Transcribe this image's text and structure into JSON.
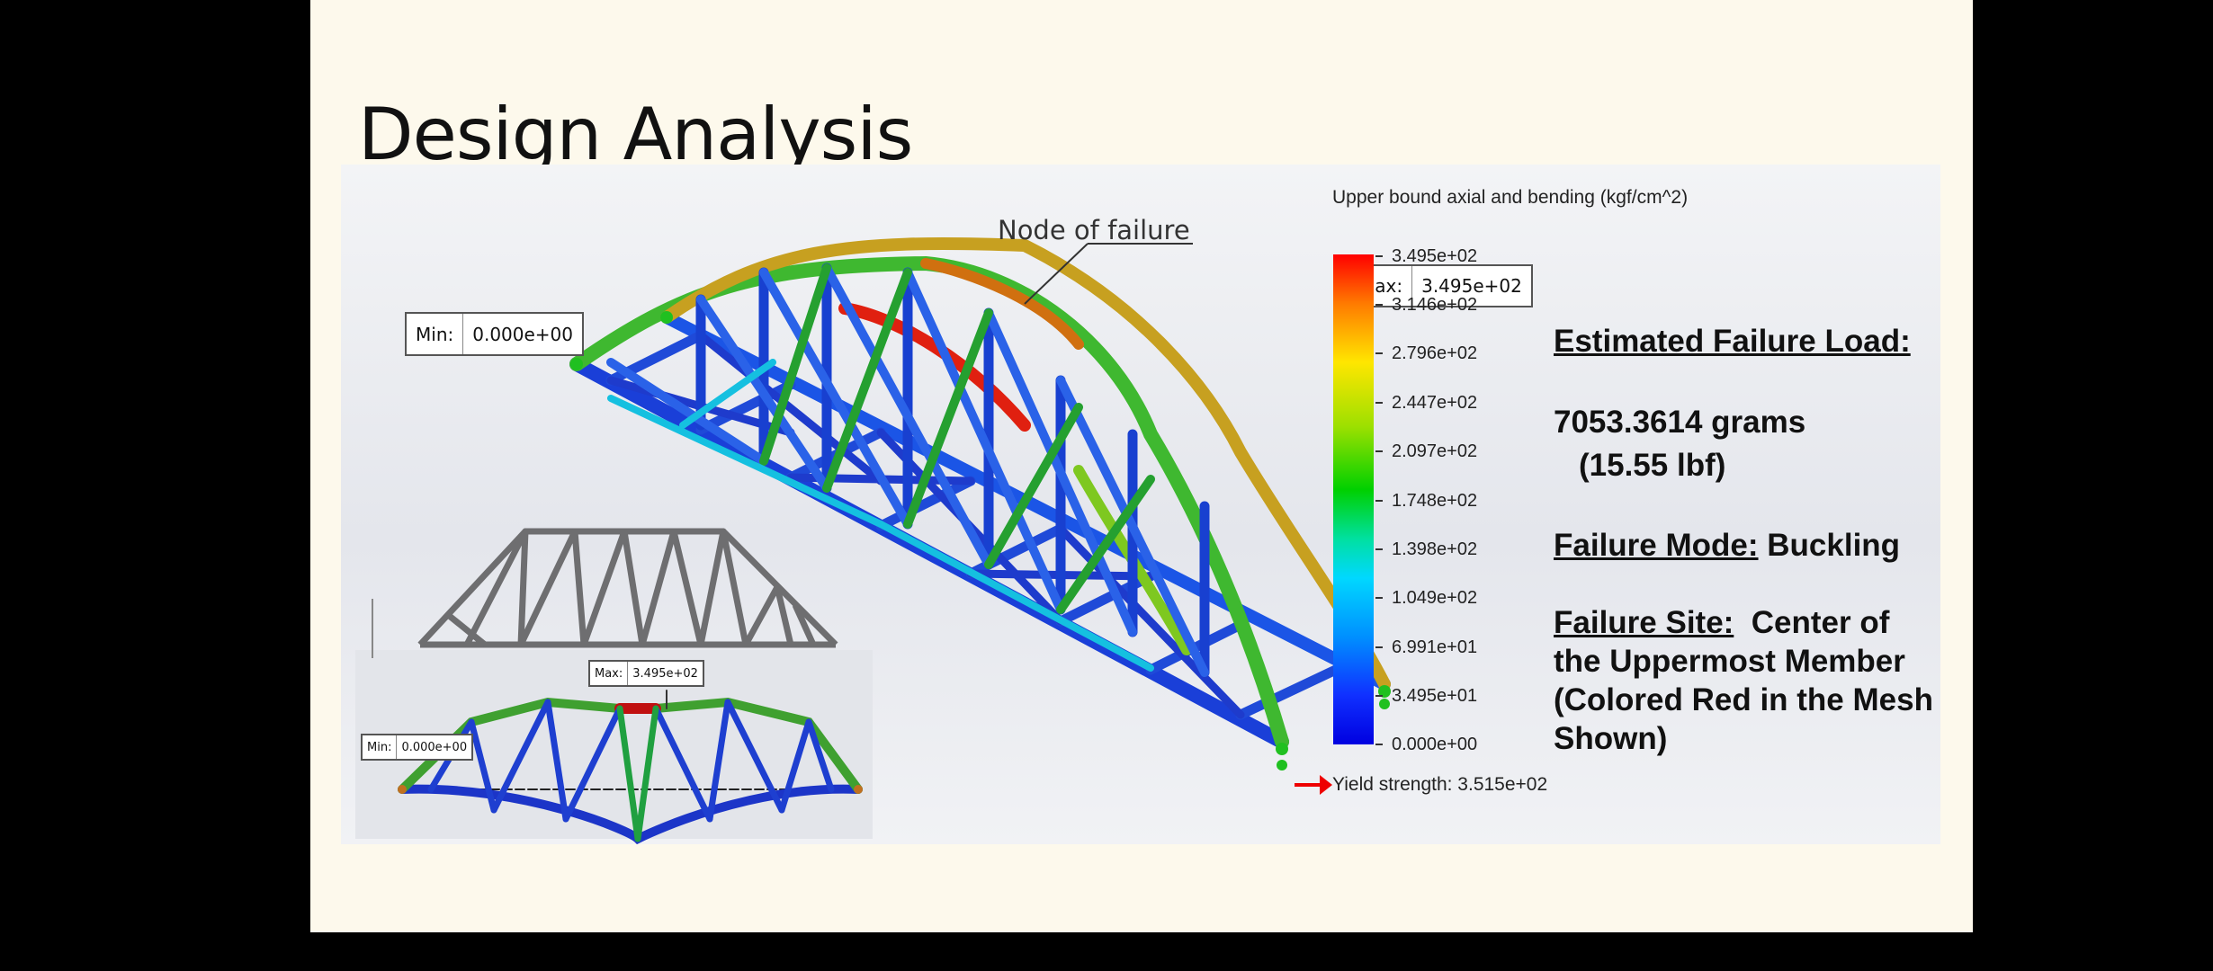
{
  "slide": {
    "title": "Design Analysis"
  },
  "simulation": {
    "min_label": "Min:",
    "min_value": "0.000e+00",
    "max_label": "Max:",
    "max_value": "3.495e+02",
    "node_annotation": "Node of failure",
    "small_max_label": "Max:",
    "small_max_value": "3.495e+02",
    "small_min_label": "Min:",
    "small_min_value": "0.000e+00"
  },
  "legend": {
    "title": "Upper bound axial and bending (kgf/cm^2)",
    "ticks": [
      "3.495e+02",
      "3.146e+02",
      "2.796e+02",
      "2.447e+02",
      "2.097e+02",
      "1.748e+02",
      "1.398e+02",
      "1.049e+02",
      "6.991e+01",
      "3.495e+01",
      "0.000e+00"
    ],
    "yield": "Yield strength: 3.515e+02",
    "colors": [
      "#ff0000",
      "#ffe600",
      "#00d000",
      "#00d8ff",
      "#0000e0"
    ]
  },
  "results": {
    "failure_load_heading": "Estimated Failure Load:",
    "failure_load_grams": "7053.3614 grams",
    "failure_load_lbf": "(15.55 lbf)",
    "failure_mode_heading": "Failure Mode:",
    "failure_mode_value": " Buckling",
    "failure_site_heading": "Failure Site:",
    "failure_site_line1": "  Center of",
    "failure_site_line2": "the Uppermost Member",
    "failure_site_line3": "(Colored Red in the Mesh",
    "failure_site_line4": "Shown)"
  }
}
